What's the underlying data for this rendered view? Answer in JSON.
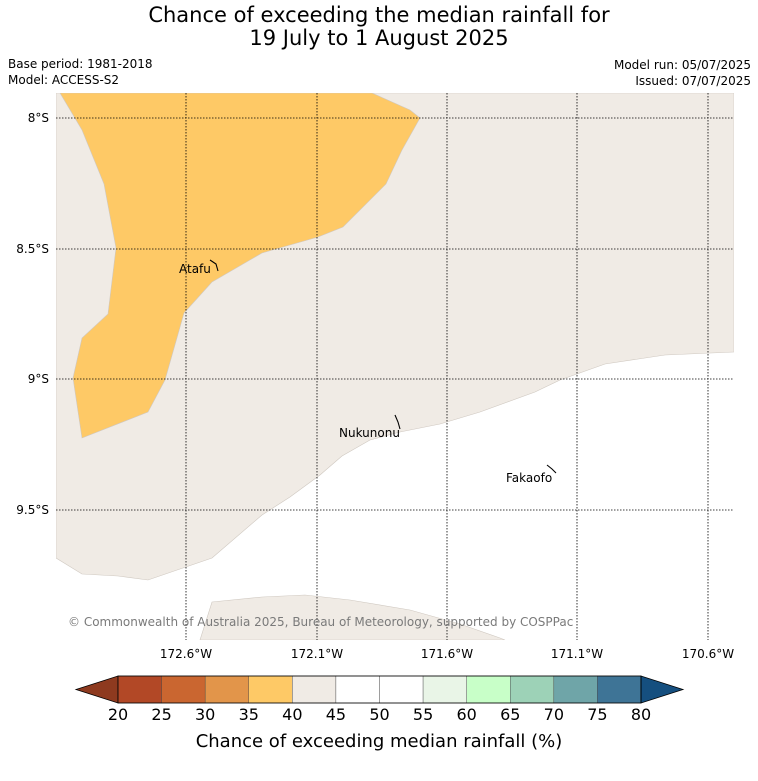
{
  "header": {
    "title_line1": "Chance of exceeding the median rainfall for",
    "title_line2": "19 July to 1 August 2025",
    "base_period": "Base period: 1981-2018",
    "model": "Model: ACCESS-S2",
    "model_run": "Model run: 05/07/2025",
    "issued": "Issued: 07/07/2025"
  },
  "map": {
    "lat_labels": [
      "8°S",
      "8.5°S",
      "9°S",
      "9.5°S"
    ],
    "lon_labels": [
      "172.6°W",
      "172.1°W",
      "171.6°W",
      "171.1°W",
      "170.6°W"
    ],
    "places": [
      {
        "name": "Atafu"
      },
      {
        "name": "Nukunonu"
      },
      {
        "name": "Fakaofo"
      }
    ],
    "copyright": "© Commonwealth of Australia 2025, Bureau of Meteorology, supported by COSPPac",
    "colors": {
      "land_or_neutral": "#f0ebe5",
      "below_35_40": "#fec966",
      "ocean_gridline": "#000000"
    }
  },
  "colorbar": {
    "ticks": [
      "20",
      "25",
      "30",
      "35",
      "40",
      "45",
      "50",
      "55",
      "60",
      "65",
      "70",
      "75",
      "80"
    ],
    "colors": [
      "#8e3a1f",
      "#b24826",
      "#ca6630",
      "#e2954a",
      "#fec966",
      "#f0ebe5",
      "#ffffff",
      "#ffffff",
      "#e9f5e7",
      "#c8ffc8",
      "#9dd2b7",
      "#6fa5a8",
      "#3e7496",
      "#154f7f"
    ],
    "title": "Chance of exceeding median rainfall (%)"
  }
}
